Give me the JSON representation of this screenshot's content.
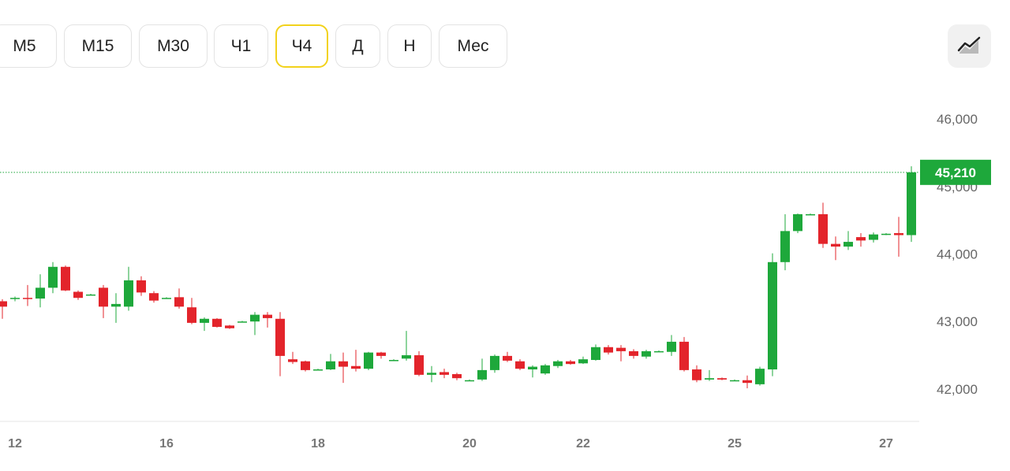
{
  "toolbar": {
    "buttons": [
      "M5",
      "M15",
      "M30",
      "Ч1",
      "Ч4",
      "Д",
      "Н",
      "Мес"
    ],
    "active": 4
  },
  "chart_data": {
    "type": "candlestick",
    "categories": [
      null,
      "12",
      null,
      null,
      null,
      null,
      null,
      null,
      null,
      null,
      null,
      null,
      null,
      "16",
      null,
      null,
      null,
      null,
      null,
      null,
      null,
      null,
      null,
      null,
      null,
      "18",
      null,
      null,
      null,
      null,
      null,
      null,
      null,
      null,
      null,
      null,
      null,
      "20",
      null,
      null,
      null,
      null,
      null,
      null,
      null,
      null,
      "22",
      null,
      null,
      null,
      null,
      null,
      null,
      null,
      null,
      null,
      null,
      null,
      "25",
      null,
      null,
      null,
      null,
      null,
      null,
      null,
      null,
      null,
      null,
      null,
      "27",
      null,
      null
    ],
    "open": [
      43300,
      43340,
      43350,
      43340,
      43500,
      43810,
      43440,
      43400,
      43500,
      43220,
      43220,
      43610,
      43420,
      43350,
      43360,
      43210,
      42980,
      43040,
      42940,
      43000,
      43000,
      43100,
      43040,
      42440,
      42410,
      42290,
      42290,
      42410,
      42340,
      42300,
      42540,
      42430,
      42450,
      42500,
      42210,
      42250,
      42220,
      42130,
      42140,
      42280,
      42490,
      42410,
      42290,
      42230,
      42340,
      42410,
      42380,
      42430,
      42620,
      42610,
      42560,
      42480,
      42560,
      42550,
      42700,
      42290,
      42140,
      42160,
      42130,
      42130,
      42070,
      42290,
      43880,
      44340,
      44590,
      44590,
      44150,
      44110,
      44250,
      44210,
      44290,
      44310,
      44280
    ],
    "high": [
      43330,
      43370,
      43540,
      43700,
      43880,
      43830,
      43460,
      43410,
      43540,
      43420,
      43810,
      43670,
      43450,
      43360,
      43490,
      43350,
      43060,
      43050,
      42950,
      43010,
      43140,
      43140,
      43140,
      42550,
      42420,
      42300,
      42520,
      42540,
      42580,
      42550,
      42550,
      42440,
      42860,
      42560,
      42340,
      42300,
      42240,
      42140,
      42450,
      42510,
      42550,
      42440,
      42350,
      42370,
      42430,
      42430,
      42480,
      42660,
      42650,
      42650,
      42590,
      42580,
      42570,
      42800,
      42770,
      42350,
      42280,
      42170,
      42140,
      42200,
      42330,
      44010,
      44590,
      44600,
      44600,
      44760,
      44260,
      44340,
      44310,
      44320,
      44310,
      44550,
      45300
    ],
    "low": [
      43040,
      43300,
      43230,
      43210,
      43420,
      43450,
      43320,
      43390,
      43050,
      42980,
      43160,
      43380,
      43280,
      43340,
      43190,
      42960,
      42860,
      42910,
      42890,
      42990,
      42800,
      42910,
      42190,
      42370,
      42260,
      42280,
      42280,
      42090,
      42260,
      42280,
      42450,
      42420,
      42420,
      42190,
      42100,
      42160,
      42130,
      42120,
      42120,
      42240,
      42400,
      42280,
      42170,
      42210,
      42310,
      42360,
      42370,
      42420,
      42510,
      42410,
      42450,
      42450,
      42550,
      42490,
      42260,
      42100,
      42120,
      42130,
      42120,
      42010,
      42050,
      42190,
      43760,
      44310,
      44580,
      44090,
      43910,
      44060,
      44110,
      44170,
      44280,
      43960,
      44180
    ],
    "close": [
      43220,
      43350,
      43340,
      43500,
      43810,
      43460,
      43350,
      43400,
      43220,
      43260,
      43610,
      43430,
      43310,
      43350,
      43220,
      42980,
      43040,
      42920,
      42900,
      43000,
      43100,
      43050,
      42490,
      42400,
      42280,
      42290,
      42410,
      42330,
      42300,
      42540,
      42490,
      42430,
      42500,
      42210,
      42240,
      42210,
      42160,
      42130,
      42280,
      42490,
      42420,
      42300,
      42330,
      42350,
      42410,
      42370,
      42440,
      42620,
      42540,
      42560,
      42490,
      42560,
      42560,
      42700,
      42280,
      42130,
      42160,
      42140,
      42130,
      42090,
      42300,
      43880,
      44340,
      44590,
      44590,
      44150,
      44110,
      44180,
      44200,
      44290,
      44300,
      44280,
      45210
    ],
    "up_color": "#1ea83b",
    "down_color": "#e3242b",
    "ylim": [
      41520,
      46480
    ],
    "yticks": [
      {
        "value": 42000,
        "label": "42,000"
      },
      {
        "value": 43000,
        "label": "43,000"
      },
      {
        "value": 44000,
        "label": "44,000"
      },
      {
        "value": 45000,
        "label": "45,000"
      },
      {
        "value": 46000,
        "label": "46,000"
      }
    ],
    "last_price": {
      "value": 45210,
      "label": "45,210"
    },
    "last_price_color": "#1ea83b"
  }
}
